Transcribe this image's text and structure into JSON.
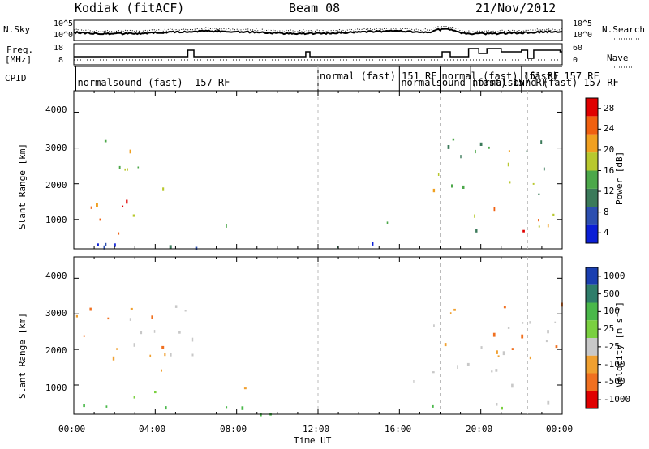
{
  "header": {
    "station": "Kodiak (fitACF)",
    "beam": "Beam 08",
    "date": "21/Nov/2012"
  },
  "top_panels": {
    "nsky_label": "N.Sky",
    "nsearch_label": "N.Search",
    "freq_label_1": "Freq.",
    "freq_label_2": "[MHz]",
    "nave_label": "Nave",
    "cpid_label": "CPID",
    "noise_left_ticks": [
      "10^5",
      "10^0"
    ],
    "noise_right_ticks": [
      "10^5",
      "10^0"
    ],
    "freq_ticks": [
      "18",
      "8"
    ],
    "nave_ticks": [
      "60",
      "0"
    ],
    "cpid_segments": [
      {
        "text": "normalsound (fast) -157 RF",
        "start_hour": 0.1
      },
      {
        "text": "normal (fast) 151 RF",
        "start_hour": 12.0
      },
      {
        "text": "normalsound (fast) 157 RF",
        "start_hour": 16.0
      },
      {
        "text": "normal (fast) 151 RF",
        "start_hour": 18.0
      },
      {
        "text": "normalsound (fast) 157 RF",
        "start_hour": 19.5
      },
      {
        "text": "(fast) 157 RF",
        "start_hour": 22.0
      }
    ]
  },
  "axes": {
    "ylabel": "Slant Range [km]",
    "xlabel": "Time UT",
    "yticks": [
      "4000",
      "3000",
      "2000",
      "1000"
    ],
    "xticks": [
      "00:00",
      "04:00",
      "08:00",
      "12:00",
      "16:00",
      "20:00",
      "00:00"
    ]
  },
  "power_colorbar": {
    "label": "Power [dB]",
    "ticks": [
      "28",
      "24",
      "20",
      "16",
      "12",
      "8",
      "4"
    ]
  },
  "velocity_colorbar": {
    "label": "Velocity [m s⁻¹]",
    "ticks": [
      "1000",
      "500",
      "100",
      "25",
      "-25",
      "-100",
      "-500",
      "-1000"
    ]
  },
  "chart_data": [
    {
      "type": "heatmap",
      "title": "",
      "xlabel": "Time UT",
      "ylabel": "Slant Range [km]",
      "xlim": [
        0,
        24
      ],
      "ylim": [
        180,
        4600
      ],
      "colorbar_label": "Power [dB]",
      "color_range": [
        0,
        30
      ],
      "colors": [
        "#0b1fd6",
        "#2c4fb0",
        "#3b7a5a",
        "#4ca84a",
        "#b8c82e",
        "#f0a020",
        "#f06010",
        "#e00000"
      ],
      "blobs": [
        {
          "t0": 0.2,
          "t1": 4.2,
          "r0": 600,
          "r1": 1900,
          "value": 22
        },
        {
          "t0": 1.3,
          "t1": 4.4,
          "r0": 1500,
          "r1": 3400,
          "value": 16
        },
        {
          "t0": 0.6,
          "t1": 2.6,
          "r0": 500,
          "r1": 900,
          "value": 28
        },
        {
          "t0": 5.2,
          "t1": 5.8,
          "r0": 1000,
          "r1": 1600,
          "value": 12
        },
        {
          "t0": 6.9,
          "t1": 8.0,
          "r0": 700,
          "r1": 1200,
          "value": 14
        },
        {
          "t0": 8.4,
          "t1": 8.9,
          "r0": 800,
          "r1": 1300,
          "value": 18
        },
        {
          "t0": 15.2,
          "t1": 16.5,
          "r0": 600,
          "r1": 1200,
          "value": 12
        },
        {
          "t0": 17.6,
          "t1": 24.0,
          "r0": 600,
          "r1": 3500,
          "value": 14
        },
        {
          "t0": 17.8,
          "t1": 23.7,
          "r0": 700,
          "r1": 1500,
          "value": 22
        },
        {
          "t0": 0.0,
          "t1": 24.0,
          "r0": 200,
          "r1": 500,
          "value": 6
        }
      ]
    },
    {
      "type": "heatmap",
      "title": "",
      "xlabel": "Time UT",
      "ylabel": "Slant Range [km]",
      "xlim": [
        0,
        24
      ],
      "ylim": [
        180,
        4600
      ],
      "colorbar_label": "Velocity [m s⁻¹]",
      "color_levels": [
        1000,
        500,
        100,
        25,
        -25,
        -100,
        -500,
        -1000
      ],
      "colors": [
        "#1a3fb0",
        "#2e7d6a",
        "#4ab84a",
        "#7ad040",
        "#c8c8c8",
        "#f0a030",
        "#f07020",
        "#e00000"
      ],
      "blobs": [
        {
          "t0": 0.1,
          "t1": 4.5,
          "r0": 1000,
          "r1": 3500,
          "value": -100
        },
        {
          "t0": 2.2,
          "t1": 6.7,
          "r0": 1400,
          "r1": 3300,
          "value": 0
        },
        {
          "t0": 0.5,
          "t1": 5.2,
          "r0": 400,
          "r1": 900,
          "value": 100
        },
        {
          "t0": 5.3,
          "t1": 6.0,
          "r0": 1000,
          "r1": 1600,
          "value": 100
        },
        {
          "t0": 7.9,
          "t1": 9.4,
          "r0": 700,
          "r1": 1300,
          "value": -100
        },
        {
          "t0": 15.6,
          "t1": 16.8,
          "r0": 700,
          "r1": 1300,
          "value": 0
        },
        {
          "t0": 17.5,
          "t1": 24.0,
          "r0": 500,
          "r1": 2800,
          "value": 0
        },
        {
          "t0": 17.8,
          "t1": 24.0,
          "r0": 1800,
          "r1": 3500,
          "value": -100
        },
        {
          "t0": 0.0,
          "t1": 24.0,
          "r0": 200,
          "r1": 500,
          "value": 100
        }
      ]
    }
  ]
}
